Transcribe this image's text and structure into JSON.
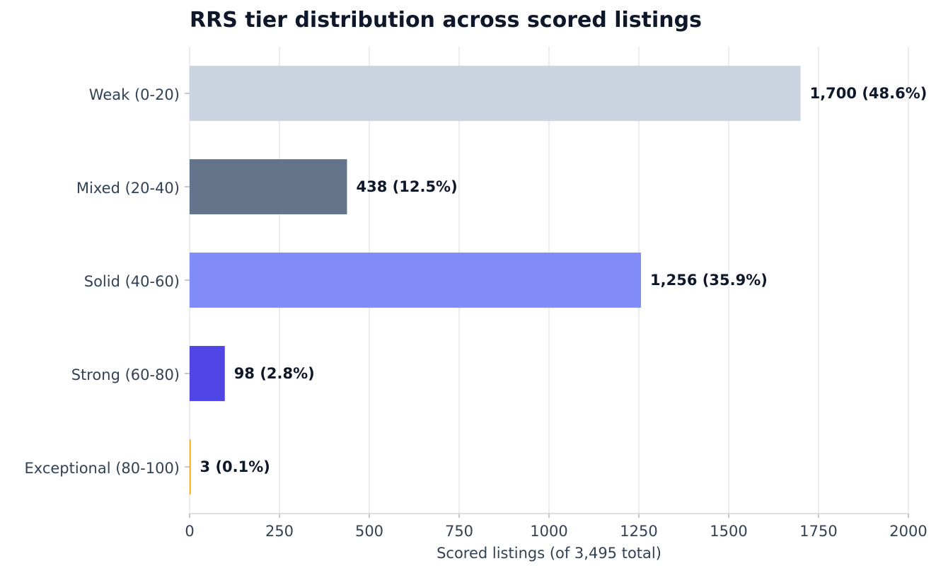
{
  "chart_data": {
    "type": "bar",
    "orientation": "horizontal",
    "title": "RRS tier distribution across scored listings",
    "xlabel": "Scored listings (of 3,495 total)",
    "ylabel": "",
    "xlim": [
      0,
      2000
    ],
    "x_ticks": [
      "0",
      "250",
      "500",
      "750",
      "1000",
      "1250",
      "1500",
      "1750",
      "2000"
    ],
    "grid": "vertical",
    "categories": [
      "Weak (0-20)",
      "Mixed (20-40)",
      "Solid (40-60)",
      "Strong (60-80)",
      "Exceptional (80-100)"
    ],
    "values": [
      1700,
      438,
      1256,
      98,
      3
    ],
    "data_labels": [
      "1,700 (48.6%)",
      "438 (12.5%)",
      "1,256 (35.9%)",
      "98 (2.8%)",
      "3 (0.1%)"
    ],
    "colors": [
      "#cbd5e1",
      "#64748b",
      "#818cf8",
      "#4f46e5",
      "#f59e0b"
    ]
  }
}
